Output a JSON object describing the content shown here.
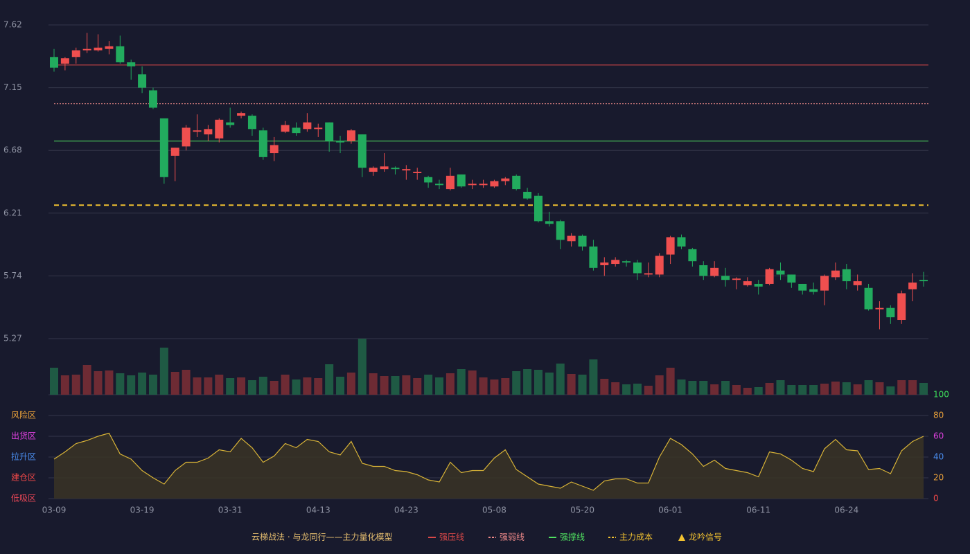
{
  "chart_data": {
    "type": "candlestick",
    "title": "云梯战法 · 与龙同行——主力量化模型",
    "categories": [
      "03-09",
      null,
      null,
      null,
      null,
      null,
      null,
      null,
      "03-19",
      null,
      null,
      null,
      null,
      null,
      null,
      null,
      "03-31",
      null,
      null,
      null,
      null,
      null,
      null,
      null,
      "04-13",
      null,
      null,
      null,
      null,
      null,
      null,
      null,
      "04-23",
      null,
      null,
      null,
      null,
      null,
      null,
      null,
      "05-08",
      null,
      null,
      null,
      null,
      null,
      null,
      null,
      "05-20",
      null,
      null,
      null,
      null,
      null,
      null,
      null,
      "06-01",
      null,
      null,
      null,
      null,
      null,
      null,
      null,
      "06-11",
      null,
      null,
      null,
      null,
      null,
      null,
      null,
      "06-24",
      null,
      null,
      null,
      null,
      null,
      null,
      null
    ],
    "open": [
      7.38,
      7.33,
      7.38,
      7.43,
      7.43,
      7.44,
      7.46,
      7.34,
      7.25,
      7.13,
      6.92,
      6.64,
      6.71,
      6.82,
      6.8,
      6.77,
      6.89,
      6.94,
      6.94,
      6.83,
      6.66,
      6.82,
      6.85,
      6.84,
      6.84,
      6.89,
      6.75,
      6.75,
      6.8,
      6.52,
      6.54,
      6.55,
      6.53,
      6.51,
      6.48,
      6.43,
      6.39,
      6.5,
      6.42,
      6.42,
      6.41,
      6.45,
      6.49,
      6.37,
      6.34,
      6.15,
      6.15,
      6.0,
      6.04,
      5.96,
      5.82,
      5.83,
      5.85,
      5.84,
      5.75,
      5.75,
      5.9,
      6.03,
      5.94,
      5.82,
      5.74,
      5.74,
      5.71,
      5.67,
      5.68,
      5.68,
      5.78,
      5.75,
      5.68,
      5.64,
      5.63,
      5.73,
      5.79,
      5.67,
      5.65,
      5.49,
      5.5,
      5.41,
      5.64,
      5.71
    ],
    "close": [
      7.3,
      7.37,
      7.43,
      7.44,
      7.45,
      7.46,
      7.34,
      7.31,
      7.15,
      7.0,
      6.48,
      6.7,
      6.85,
      6.83,
      6.84,
      6.91,
      6.87,
      6.96,
      6.84,
      6.63,
      6.72,
      6.87,
      6.81,
      6.89,
      6.85,
      6.75,
      6.74,
      6.83,
      6.55,
      6.55,
      6.56,
      6.54,
      6.54,
      6.52,
      6.44,
      6.42,
      6.49,
      6.41,
      6.43,
      6.43,
      6.45,
      6.47,
      6.39,
      6.32,
      6.15,
      6.13,
      6.01,
      6.04,
      5.96,
      5.8,
      5.84,
      5.86,
      5.84,
      5.76,
      5.76,
      5.89,
      6.03,
      5.96,
      5.85,
      5.74,
      5.8,
      5.71,
      5.72,
      5.7,
      5.66,
      5.79,
      5.75,
      5.69,
      5.63,
      5.62,
      5.74,
      5.78,
      5.7,
      5.7,
      5.49,
      5.5,
      5.43,
      5.61,
      5.69,
      5.7
    ],
    "low": [
      7.27,
      7.28,
      7.33,
      7.41,
      7.42,
      7.4,
      7.33,
      7.21,
      7.11,
      6.99,
      6.43,
      6.45,
      6.68,
      6.78,
      6.75,
      6.74,
      6.85,
      6.92,
      6.79,
      6.61,
      6.6,
      6.81,
      6.79,
      6.82,
      6.78,
      6.67,
      6.66,
      6.73,
      6.48,
      6.49,
      6.52,
      6.5,
      6.46,
      6.46,
      6.4,
      6.39,
      6.38,
      6.4,
      6.39,
      6.4,
      6.4,
      6.42,
      6.38,
      6.31,
      6.14,
      6.11,
      5.94,
      5.96,
      5.93,
      5.78,
      5.74,
      5.81,
      5.81,
      5.71,
      5.73,
      5.73,
      5.83,
      5.94,
      5.81,
      5.71,
      5.73,
      5.66,
      5.64,
      5.66,
      5.6,
      5.67,
      5.71,
      5.65,
      5.6,
      5.6,
      5.52,
      5.71,
      5.64,
      5.63,
      5.48,
      5.34,
      5.38,
      5.38,
      5.55,
      5.66
    ],
    "high": [
      7.44,
      7.38,
      7.45,
      7.56,
      7.55,
      7.5,
      7.54,
      7.36,
      7.31,
      7.15,
      6.92,
      6.7,
      6.87,
      6.95,
      6.87,
      6.92,
      7.0,
      6.97,
      6.95,
      6.85,
      6.78,
      6.9,
      6.89,
      6.96,
      6.88,
      6.89,
      6.79,
      6.84,
      6.8,
      6.56,
      6.66,
      6.56,
      6.57,
      6.55,
      6.49,
      6.46,
      6.55,
      6.5,
      6.46,
      6.46,
      6.46,
      6.48,
      6.5,
      6.4,
      6.36,
      6.22,
      6.16,
      6.06,
      6.05,
      6.01,
      5.88,
      5.88,
      5.86,
      5.86,
      5.84,
      5.91,
      6.04,
      6.05,
      5.95,
      5.85,
      5.85,
      5.8,
      5.73,
      5.73,
      5.71,
      5.8,
      5.84,
      5.75,
      5.68,
      5.69,
      5.75,
      5.84,
      5.83,
      5.75,
      5.68,
      5.55,
      5.52,
      5.63,
      5.76,
      5.77
    ],
    "up_color": "#ef4f4f",
    "down_color": "#22ab5e",
    "ylim": [
      5.27,
      7.62
    ],
    "yticks": [
      7.62,
      7.15,
      6.68,
      6.21,
      5.74,
      5.27
    ],
    "grid": true,
    "volume": [
      39,
      28,
      29,
      43,
      34,
      35,
      31,
      28,
      32,
      29,
      68,
      33,
      36,
      25,
      25,
      29,
      24,
      25,
      21,
      26,
      20,
      29,
      22,
      25,
      24,
      44,
      26,
      32,
      81,
      31,
      27,
      27,
      28,
      24,
      29,
      25,
      31,
      37,
      35,
      25,
      22,
      24,
      34,
      37,
      36,
      32,
      45,
      30,
      29,
      51,
      23,
      18,
      15,
      16,
      13,
      28,
      39,
      22,
      20,
      20,
      15,
      20,
      14,
      10,
      11,
      17,
      21,
      14,
      14,
      14,
      16,
      19,
      18,
      15,
      21,
      18,
      12,
      21,
      21,
      17
    ],
    "volume_up_color": "#6e2b34",
    "volume_down_color": "#1f5a44",
    "levels": [
      {
        "name": "强压线",
        "value": 7.32,
        "color": "#d94848",
        "dash": "none"
      },
      {
        "name": "强弱线",
        "value": 7.03,
        "color": "#f08a8a",
        "dash": "2,2"
      },
      {
        "name": "强撑线",
        "value": 6.75,
        "color": "#4fe060",
        "dash": "none"
      },
      {
        "name": "主力成本",
        "value": 6.27,
        "color": "#f2c230",
        "dash": "7,5"
      }
    ],
    "signal": {
      "name": "龙吟信号",
      "color": "#f2c230"
    },
    "oscillator": {
      "values": [
        38,
        45,
        53,
        56,
        60,
        63,
        43,
        38,
        27,
        20,
        14,
        27,
        35,
        35,
        39,
        47,
        45,
        58,
        49,
        35,
        41,
        53,
        49,
        57,
        55,
        45,
        42,
        55,
        34,
        31,
        31,
        27,
        26,
        23,
        18,
        16,
        35,
        25,
        27,
        27,
        39,
        47,
        28,
        21,
        14,
        12,
        10,
        16,
        12,
        8,
        17,
        19,
        19,
        15,
        15,
        40,
        58,
        52,
        43,
        31,
        37,
        29,
        27,
        25,
        21,
        45,
        43,
        37,
        29,
        26,
        48,
        57,
        47,
        46,
        28,
        29,
        24,
        46,
        55,
        60
      ],
      "color": "#d9b437",
      "fill": "#3a3426",
      "ylim": [
        0,
        100
      ],
      "yticks": [
        100,
        80,
        60,
        40,
        20,
        0
      ],
      "ytick_colors": [
        "#3ddc5a",
        "#e8a03a",
        "#e040e0",
        "#4a8ef0",
        "#e8a03a",
        "#f04848"
      ],
      "zones": [
        {
          "value": 80,
          "label": "风险区",
          "color": "#e8a03a"
        },
        {
          "value": 60,
          "label": "出货区",
          "color": "#e040e0"
        },
        {
          "value": 40,
          "label": "拉升区",
          "color": "#4a8ef0"
        },
        {
          "value": 20,
          "label": "建仓区",
          "color": "#f04848"
        },
        {
          "value": 0,
          "label": "低吸区",
          "color": "#f04858"
        }
      ]
    }
  }
}
